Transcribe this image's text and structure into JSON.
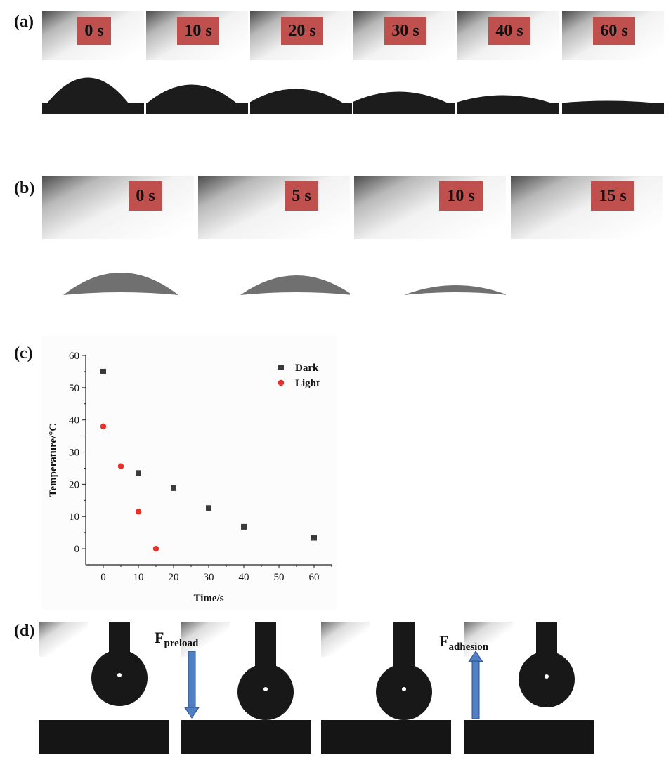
{
  "panels": {
    "a_label": "(a)",
    "b_label": "(b)",
    "c_label": "(c)",
    "d_label": "(d)"
  },
  "row_a": {
    "times": [
      "0 s",
      "10 s",
      "20 s",
      "30 s",
      "40 s",
      "60 s"
    ]
  },
  "row_b": {
    "times": [
      "0 s",
      "5 s",
      "10 s",
      "15 s"
    ]
  },
  "row_d": {
    "preload_main": "F",
    "preload_sub": "preload",
    "adhesion_main": "F",
    "adhesion_sub": "adhesion"
  },
  "colors": {
    "time_box": "#c0504d",
    "dark_series": "#3a3a3a",
    "light_series": "#e8302a",
    "arrow": "#4f7fc4"
  },
  "chart_data": {
    "type": "scatter",
    "title": "",
    "xlabel": "Time/s",
    "ylabel": "Temperature/°C",
    "xlim": [
      -5,
      65
    ],
    "ylim": [
      -5,
      60
    ],
    "xticks": [
      0,
      10,
      20,
      30,
      40,
      50,
      60
    ],
    "yticks": [
      0,
      10,
      20,
      30,
      40,
      50,
      60
    ],
    "legend_position": "top-right",
    "series": [
      {
        "name": "Dark",
        "marker": "square",
        "color": "#3a3a3a",
        "x": [
          0,
          10,
          20,
          30,
          40,
          60
        ],
        "y": [
          55,
          23.5,
          18.8,
          12.6,
          6.8,
          3.4
        ]
      },
      {
        "name": "Light",
        "marker": "circle",
        "color": "#e8302a",
        "x": [
          0,
          5,
          10,
          15
        ],
        "y": [
          38,
          25.6,
          11.5,
          0
        ]
      }
    ]
  }
}
